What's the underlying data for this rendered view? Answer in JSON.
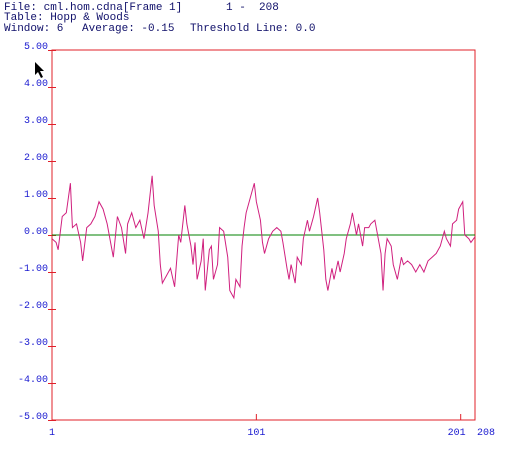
{
  "chart_data": {
    "type": "line",
    "file": "File: cml.hom.cdna[Frame 1]",
    "range": "1 -  208",
    "table": "Table: Hopp & Woods",
    "window": "Window: 6",
    "average": "Average: -0.15",
    "threshold_label": "Threshold Line: 0.0",
    "threshold": 0,
    "threshold_color": "#008000",
    "frame_color": "#e0202a",
    "xlim": [
      1,
      208
    ],
    "xticks": [
      1,
      101,
      201,
      208
    ],
    "ylim": [
      -5,
      5
    ],
    "yticks": [
      {
        "value": 5,
        "label": "5.00"
      },
      {
        "value": 4,
        "label": "4.00"
      },
      {
        "value": 3,
        "label": "3.00"
      },
      {
        "value": 2,
        "label": "2.00"
      },
      {
        "value": 1,
        "label": "1.00"
      },
      {
        "value": 0,
        "label": "0.00"
      },
      {
        "value": -1,
        "label": "-1.00"
      },
      {
        "value": -2,
        "label": "-2.00"
      },
      {
        "value": -3,
        "label": "-3.00"
      },
      {
        "value": -4,
        "label": "-4.00"
      },
      {
        "value": -5,
        "label": "-5.00"
      }
    ],
    "x": [
      1,
      3,
      4,
      6,
      8,
      10,
      11,
      13,
      15,
      16,
      18,
      20,
      22,
      24,
      26,
      28,
      30,
      31,
      33,
      35,
      37,
      38,
      40,
      42,
      44,
      46,
      48,
      50,
      51,
      53,
      54,
      55,
      57,
      59,
      61,
      63,
      64,
      66,
      67,
      69,
      70,
      71,
      72,
      74,
      75,
      76,
      78,
      79,
      80,
      82,
      83,
      85,
      87,
      88,
      90,
      91,
      93,
      94,
      95,
      96,
      98,
      100,
      101,
      103,
      104,
      105,
      107,
      109,
      111,
      113,
      114,
      116,
      117,
      118,
      120,
      121,
      123,
      124,
      126,
      127,
      129,
      131,
      132,
      134,
      135,
      136,
      138,
      139,
      141,
      142,
      144,
      145,
      147,
      148,
      150,
      151,
      153,
      154,
      156,
      157,
      159,
      160,
      162,
      163,
      164,
      165,
      167,
      168,
      170,
      172,
      173,
      175,
      177,
      179,
      181,
      183,
      185,
      187,
      189,
      191,
      193,
      194,
      196,
      197,
      199,
      200,
      202,
      203,
      205,
      206,
      208
    ],
    "series": [
      {
        "color": "#d0207e",
        "values": [
          -0.1,
          -0.2,
          -0.4,
          0.5,
          0.6,
          1.4,
          0.2,
          0.3,
          -0.2,
          -0.7,
          0.2,
          0.3,
          0.5,
          0.9,
          0.7,
          0.3,
          -0.3,
          -0.6,
          0.5,
          0.2,
          -0.5,
          0.3,
          0.6,
          0.2,
          0.4,
          -0.1,
          0.6,
          1.6,
          0.8,
          0.1,
          -0.8,
          -1.3,
          -1.1,
          -0.9,
          -1.4,
          0.0,
          -0.2,
          0.8,
          0.3,
          -0.3,
          -0.8,
          -0.2,
          -1.2,
          -0.7,
          -0.1,
          -1.5,
          -0.4,
          -0.3,
          -1.2,
          -0.8,
          0.2,
          0.1,
          -0.6,
          -1.5,
          -1.7,
          -1.2,
          -1.4,
          -0.3,
          0.2,
          0.6,
          1.0,
          1.4,
          0.9,
          0.4,
          -0.2,
          -0.5,
          -0.1,
          0.1,
          0.2,
          0.1,
          -0.2,
          -0.9,
          -1.2,
          -0.8,
          -1.3,
          -0.6,
          -0.8,
          -0.1,
          0.4,
          0.1,
          0.5,
          1.0,
          0.6,
          -0.4,
          -1.2,
          -1.5,
          -0.9,
          -1.2,
          -0.7,
          -1.0,
          -0.5,
          -0.1,
          0.3,
          0.6,
          0.0,
          0.3,
          -0.3,
          0.2,
          0.2,
          0.3,
          0.4,
          0.1,
          -0.5,
          -1.5,
          -0.5,
          -0.1,
          -0.3,
          -0.8,
          -1.2,
          -0.6,
          -0.8,
          -0.7,
          -0.8,
          -1.0,
          -0.8,
          -1.0,
          -0.7,
          -0.6,
          -0.5,
          -0.3,
          0.1,
          -0.1,
          -0.3,
          0.3,
          0.4,
          0.7,
          0.9,
          0.0,
          -0.1,
          -0.2,
          -0.05
        ]
      }
    ]
  }
}
